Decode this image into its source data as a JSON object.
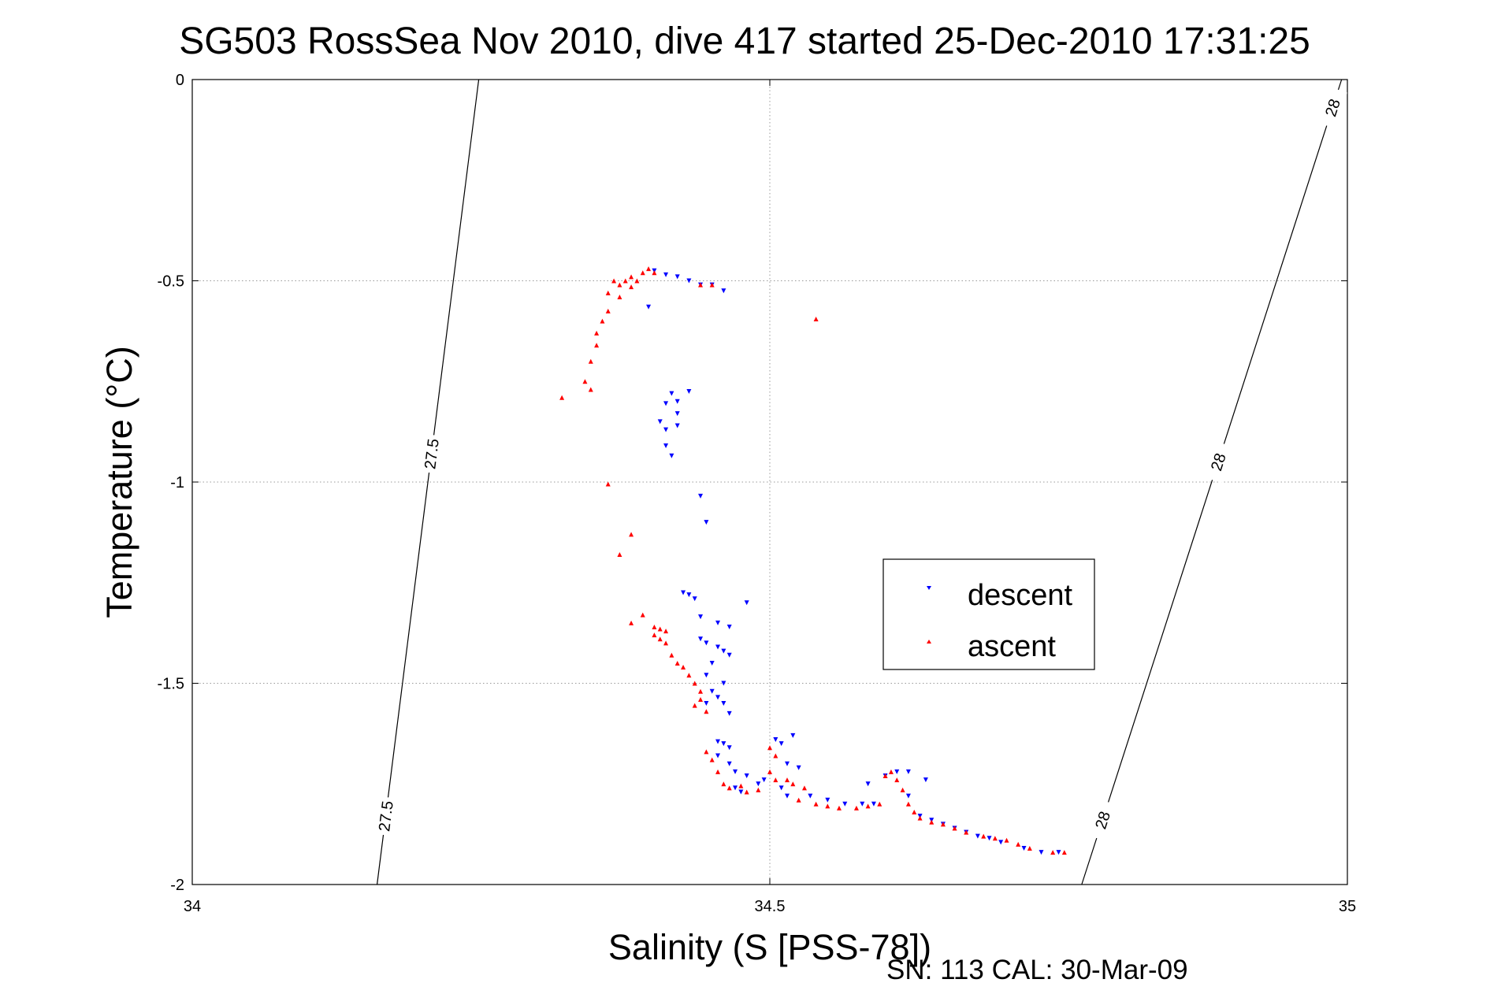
{
  "chart_data": {
    "type": "scatter",
    "title": "SG503 RossSea Nov 2010, dive 417 started 25-Dec-2010 17:31:25",
    "xlabel": "Salinity (S [PSS-78])",
    "ylabel": "Temperature (°C)",
    "xlim": [
      34,
      35
    ],
    "ylim": [
      -2,
      0
    ],
    "x_ticks": [
      34,
      34.5,
      35
    ],
    "x_tick_labels": [
      "34",
      "34.5",
      "35"
    ],
    "y_ticks": [
      0,
      -0.5,
      -1,
      -1.5,
      -2
    ],
    "y_tick_labels": [
      "0",
      "-0.5",
      "-1",
      "-1.5",
      "-2"
    ],
    "grid": true,
    "grid_style": "dotted",
    "legend_placement": "lower-right",
    "series": [
      {
        "name": "descent",
        "marker": "triangle-down",
        "color": "#0000ff",
        "points": [
          [
            34.4,
            -0.475
          ],
          [
            34.41,
            -0.485
          ],
          [
            34.42,
            -0.49
          ],
          [
            34.43,
            -0.5
          ],
          [
            34.44,
            -0.51
          ],
          [
            34.45,
            -0.51
          ],
          [
            34.46,
            -0.525
          ],
          [
            34.395,
            -0.565
          ],
          [
            34.43,
            -0.775
          ],
          [
            34.415,
            -0.78
          ],
          [
            34.42,
            -0.8
          ],
          [
            34.41,
            -0.805
          ],
          [
            34.42,
            -0.83
          ],
          [
            34.405,
            -0.85
          ],
          [
            34.42,
            -0.86
          ],
          [
            34.41,
            -0.87
          ],
          [
            34.41,
            -0.91
          ],
          [
            34.415,
            -0.935
          ],
          [
            34.44,
            -1.035
          ],
          [
            34.445,
            -1.1
          ],
          [
            34.425,
            -1.275
          ],
          [
            34.43,
            -1.28
          ],
          [
            34.435,
            -1.29
          ],
          [
            34.48,
            -1.3
          ],
          [
            34.44,
            -1.335
          ],
          [
            34.455,
            -1.35
          ],
          [
            34.465,
            -1.36
          ],
          [
            34.44,
            -1.39
          ],
          [
            34.445,
            -1.4
          ],
          [
            34.455,
            -1.41
          ],
          [
            34.46,
            -1.42
          ],
          [
            34.465,
            -1.43
          ],
          [
            34.45,
            -1.45
          ],
          [
            34.445,
            -1.48
          ],
          [
            34.46,
            -1.5
          ],
          [
            34.45,
            -1.52
          ],
          [
            34.455,
            -1.535
          ],
          [
            34.445,
            -1.55
          ],
          [
            34.46,
            -1.55
          ],
          [
            34.465,
            -1.575
          ],
          [
            34.455,
            -1.645
          ],
          [
            34.46,
            -1.65
          ],
          [
            34.465,
            -1.66
          ],
          [
            34.455,
            -1.68
          ],
          [
            34.465,
            -1.7
          ],
          [
            34.47,
            -1.72
          ],
          [
            34.48,
            -1.73
          ],
          [
            34.49,
            -1.75
          ],
          [
            34.495,
            -1.74
          ],
          [
            34.47,
            -1.76
          ],
          [
            34.475,
            -1.77
          ],
          [
            34.505,
            -1.64
          ],
          [
            34.51,
            -1.65
          ],
          [
            34.52,
            -1.63
          ],
          [
            34.515,
            -1.7
          ],
          [
            34.525,
            -1.71
          ],
          [
            34.51,
            -1.76
          ],
          [
            34.515,
            -1.78
          ],
          [
            34.535,
            -1.78
          ],
          [
            34.55,
            -1.79
          ],
          [
            34.565,
            -1.8
          ],
          [
            34.58,
            -1.8
          ],
          [
            34.59,
            -1.8
          ],
          [
            34.585,
            -1.75
          ],
          [
            34.6,
            -1.73
          ],
          [
            34.61,
            -1.72
          ],
          [
            34.62,
            -1.72
          ],
          [
            34.635,
            -1.74
          ],
          [
            34.62,
            -1.78
          ],
          [
            34.63,
            -1.83
          ],
          [
            34.64,
            -1.84
          ],
          [
            34.65,
            -1.85
          ],
          [
            34.66,
            -1.86
          ],
          [
            34.67,
            -1.87
          ],
          [
            34.68,
            -1.88
          ],
          [
            34.69,
            -1.885
          ],
          [
            34.7,
            -1.895
          ],
          [
            34.72,
            -1.91
          ],
          [
            34.735,
            -1.92
          ],
          [
            34.75,
            -1.92
          ]
        ]
      },
      {
        "name": "ascent",
        "marker": "triangle-up",
        "color": "#ff0000",
        "points": [
          [
            34.395,
            -0.47
          ],
          [
            34.39,
            -0.48
          ],
          [
            34.4,
            -0.48
          ],
          [
            34.38,
            -0.49
          ],
          [
            34.385,
            -0.5
          ],
          [
            34.375,
            -0.5
          ],
          [
            34.365,
            -0.5
          ],
          [
            34.37,
            -0.51
          ],
          [
            34.38,
            -0.515
          ],
          [
            34.44,
            -0.51
          ],
          [
            34.45,
            -0.51
          ],
          [
            34.54,
            -0.595
          ],
          [
            34.36,
            -0.53
          ],
          [
            34.37,
            -0.54
          ],
          [
            34.36,
            -0.575
          ],
          [
            34.355,
            -0.6
          ],
          [
            34.35,
            -0.63
          ],
          [
            34.35,
            -0.66
          ],
          [
            34.345,
            -0.7
          ],
          [
            34.34,
            -0.75
          ],
          [
            34.345,
            -0.77
          ],
          [
            34.32,
            -0.79
          ],
          [
            34.36,
            -1.005
          ],
          [
            34.38,
            -1.13
          ],
          [
            34.37,
            -1.18
          ],
          [
            34.39,
            -1.33
          ],
          [
            34.38,
            -1.35
          ],
          [
            34.4,
            -1.36
          ],
          [
            34.405,
            -1.365
          ],
          [
            34.41,
            -1.37
          ],
          [
            34.4,
            -1.38
          ],
          [
            34.405,
            -1.39
          ],
          [
            34.41,
            -1.4
          ],
          [
            34.415,
            -1.43
          ],
          [
            34.42,
            -1.45
          ],
          [
            34.425,
            -1.46
          ],
          [
            34.43,
            -1.48
          ],
          [
            34.435,
            -1.5
          ],
          [
            34.44,
            -1.52
          ],
          [
            34.44,
            -1.54
          ],
          [
            34.435,
            -1.555
          ],
          [
            34.445,
            -1.57
          ],
          [
            34.445,
            -1.67
          ],
          [
            34.45,
            -1.69
          ],
          [
            34.455,
            -1.72
          ],
          [
            34.46,
            -1.75
          ],
          [
            34.465,
            -1.76
          ],
          [
            34.475,
            -1.755
          ],
          [
            34.48,
            -1.77
          ],
          [
            34.49,
            -1.765
          ],
          [
            34.5,
            -1.66
          ],
          [
            34.505,
            -1.68
          ],
          [
            34.5,
            -1.72
          ],
          [
            34.505,
            -1.74
          ],
          [
            34.515,
            -1.74
          ],
          [
            34.52,
            -1.75
          ],
          [
            34.53,
            -1.76
          ],
          [
            34.525,
            -1.79
          ],
          [
            34.54,
            -1.8
          ],
          [
            34.55,
            -1.805
          ],
          [
            34.56,
            -1.81
          ],
          [
            34.575,
            -1.81
          ],
          [
            34.585,
            -1.805
          ],
          [
            34.595,
            -1.8
          ],
          [
            34.6,
            -1.73
          ],
          [
            34.605,
            -1.72
          ],
          [
            34.61,
            -1.74
          ],
          [
            34.615,
            -1.765
          ],
          [
            34.62,
            -1.8
          ],
          [
            34.625,
            -1.82
          ],
          [
            34.63,
            -1.835
          ],
          [
            34.64,
            -1.845
          ],
          [
            34.65,
            -1.85
          ],
          [
            34.66,
            -1.86
          ],
          [
            34.67,
            -1.87
          ],
          [
            34.685,
            -1.88
          ],
          [
            34.695,
            -1.885
          ],
          [
            34.705,
            -1.89
          ],
          [
            34.715,
            -1.9
          ],
          [
            34.725,
            -1.91
          ],
          [
            34.745,
            -1.92
          ],
          [
            34.755,
            -1.92
          ]
        ]
      }
    ],
    "contours": [
      {
        "value_label": "27.5",
        "line": [
          [
            34.16,
            -2
          ],
          [
            34.248,
            0
          ]
        ],
        "label_y": [
          -0.93,
          -1.83
        ]
      },
      {
        "value_label": "28",
        "line": [
          [
            34.77,
            -2
          ],
          [
            34.995,
            0
          ]
        ],
        "label_y": [
          -0.07,
          -0.95,
          -1.84
        ]
      }
    ],
    "footer": "SN: 113  CAL: 30-Mar-09"
  }
}
